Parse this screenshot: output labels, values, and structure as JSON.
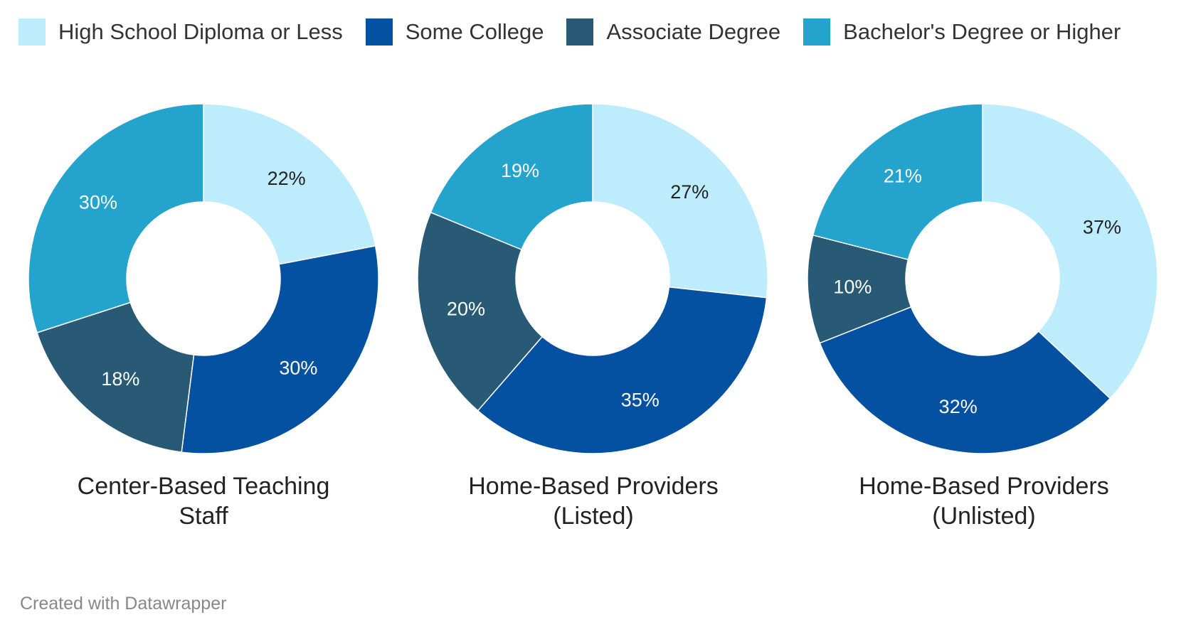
{
  "legend": [
    {
      "label": "High School Diploma or Less",
      "color": "#bdecfc"
    },
    {
      "label": "Some College",
      "color": "#0351a0"
    },
    {
      "label": "Associate Degree",
      "color": "#295a75"
    },
    {
      "label": "Bachelor's Degree or Higher",
      "color": "#24a3cd"
    }
  ],
  "chart_data": [
    {
      "type": "pie",
      "title": "Center-Based Teaching Staff",
      "categories": [
        "High School Diploma or Less",
        "Some College",
        "Associate Degree",
        "Bachelor's Degree or Higher"
      ],
      "values": [
        22,
        30,
        18,
        30
      ],
      "labels": [
        "22%",
        "30%",
        "18%",
        "30%"
      ]
    },
    {
      "type": "pie",
      "title": "Home-Based Providers (Listed)",
      "categories": [
        "High School Diploma or Less",
        "Some College",
        "Associate Degree",
        "Bachelor's Degree or Higher"
      ],
      "values": [
        27,
        35,
        20,
        19
      ],
      "labels": [
        "27%",
        "35%",
        "20%",
        "19%"
      ]
    },
    {
      "type": "pie",
      "title": "Home-Based Providers (Unlisted)",
      "categories": [
        "High School Diploma or Less",
        "Some College",
        "Associate Degree",
        "Bachelor's Degree or Higher"
      ],
      "values": [
        37,
        32,
        10,
        21
      ],
      "labels": [
        "37%",
        "32%",
        "10%",
        "21%"
      ]
    }
  ],
  "label_colors": [
    "#222222",
    "#ffffff",
    "#ffffff",
    "#ffffff"
  ],
  "credit": "Created with Datawrapper"
}
